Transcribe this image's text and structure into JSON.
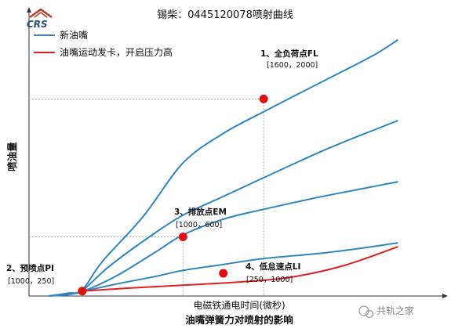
{
  "chart_data": {
    "type": "line",
    "title": "锡柴：0445120078喷射曲线",
    "xlabel": "电磁铁通电时间(微秒)",
    "ylabel": "喷油量",
    "caption": "油嘴弹簧力对喷射的影响",
    "legend": [
      {
        "name": "新油嘴",
        "color": "#4a7ebb"
      },
      {
        "name": "油嘴运动发卡，开启压力高",
        "color": "#e02020"
      }
    ],
    "legend_placement": "top-left",
    "grid": false,
    "series": [
      {
        "name": "新油嘴",
        "color": "#2e86c1",
        "points": [
          [
            0,
            0
          ],
          [
            150,
            30
          ],
          [
            250,
            60
          ],
          [
            400,
            350
          ],
          [
            700,
            800
          ],
          [
            1000,
            1350
          ],
          [
            1300,
            1650
          ],
          [
            1600,
            1870
          ],
          [
            2000,
            2150
          ],
          [
            2400,
            2430
          ],
          [
            2600,
            2600
          ]
        ]
      },
      {
        "name": "新油嘴",
        "color": "#2e86c1",
        "points": [
          [
            0,
            0
          ],
          [
            150,
            25
          ],
          [
            250,
            55
          ],
          [
            450,
            300
          ],
          [
            750,
            600
          ],
          [
            1000,
            820
          ],
          [
            1300,
            1010
          ],
          [
            1600,
            1200
          ],
          [
            2000,
            1450
          ],
          [
            2300,
            1620
          ],
          [
            2600,
            1780
          ]
        ]
      },
      {
        "name": "新油嘴",
        "color": "#2e86c1",
        "points": [
          [
            0,
            0
          ],
          [
            150,
            20
          ],
          [
            250,
            45
          ],
          [
            500,
            200
          ],
          [
            800,
            450
          ],
          [
            1000,
            620
          ],
          [
            1300,
            780
          ],
          [
            1600,
            880
          ],
          [
            2000,
            1000
          ],
          [
            2300,
            1080
          ],
          [
            2600,
            1160
          ]
        ]
      },
      {
        "name": "新油嘴",
        "color": "#2e86c1",
        "points": [
          [
            0,
            0
          ],
          [
            150,
            15
          ],
          [
            250,
            45
          ],
          [
            500,
            120
          ],
          [
            800,
            200
          ],
          [
            1000,
            260
          ],
          [
            1300,
            320
          ],
          [
            1600,
            380
          ],
          [
            2000,
            430
          ],
          [
            2300,
            480
          ],
          [
            2600,
            540
          ]
        ]
      },
      {
        "name": "油嘴运动发卡，开启压力高",
        "color": "#e02020",
        "points": [
          [
            250,
            50
          ],
          [
            600,
            80
          ],
          [
            1000,
            110
          ],
          [
            1400,
            140
          ],
          [
            1800,
            190
          ],
          [
            2200,
            310
          ],
          [
            2600,
            500
          ]
        ]
      }
    ],
    "annotations": [
      {
        "title": "1、全负荷点FL",
        "value": "[1600，2000]",
        "x": 1600,
        "y": 2000
      },
      {
        "title": "2、预喷点PI",
        "value": "[1000，250]",
        "x": 250,
        "y": 50
      },
      {
        "title": "3、排放点EM",
        "value": "[1000，600]",
        "x": 1000,
        "y": 600
      },
      {
        "title": "4、低怠速点LI",
        "value": "[250，1000]",
        "x": 1300,
        "y": 230
      }
    ],
    "xlim": [
      0,
      2650
    ],
    "ylim": [
      0,
      2750
    ]
  },
  "logo": {
    "text": "CRS"
  },
  "watermark": {
    "text": "共轨之家"
  }
}
